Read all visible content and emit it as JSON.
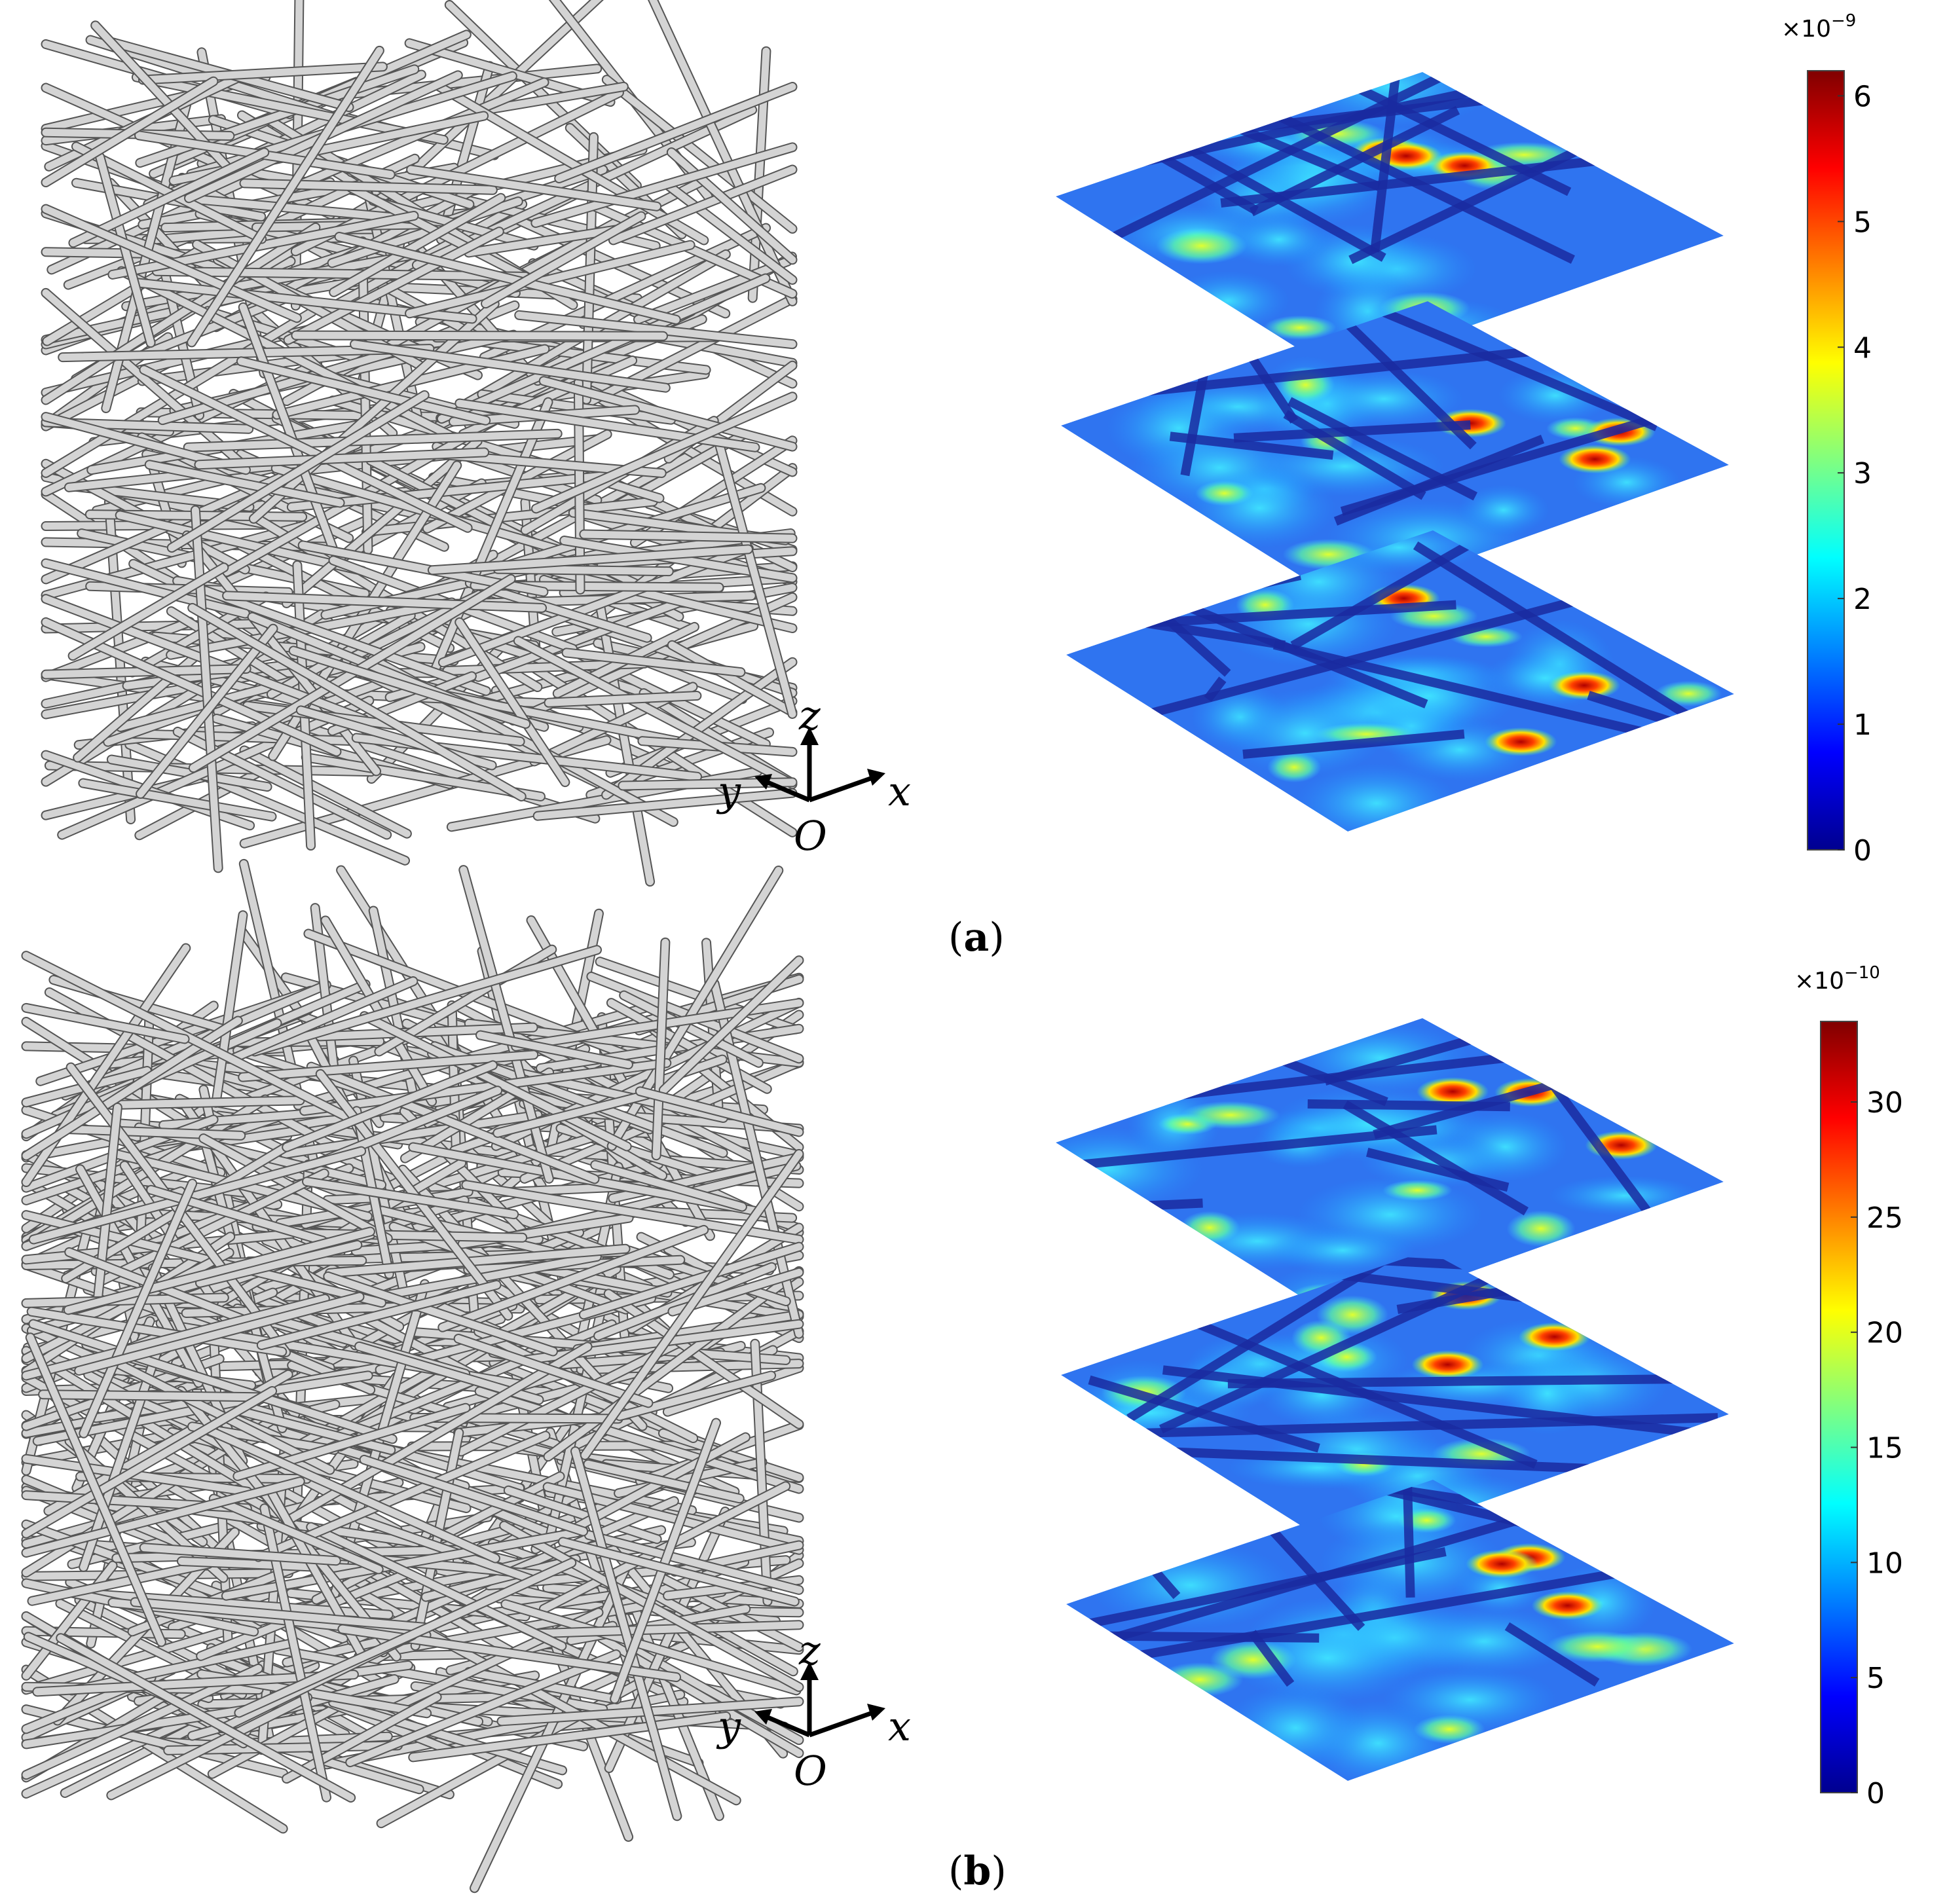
{
  "panels": [
    {
      "id": "a",
      "caption_open": "(",
      "caption_letter": "a",
      "caption_close": ")",
      "axes": {
        "z": "z",
        "y": "y",
        "x": "x",
        "origin": "O"
      },
      "colorbar": {
        "multiplier": "×10",
        "exponent": "−9",
        "ticks": [
          "0",
          "1",
          "2",
          "3",
          "4",
          "5",
          "6"
        ],
        "min": 0,
        "max": 6.2
      },
      "slices": 3
    },
    {
      "id": "b",
      "caption_open": "(",
      "caption_letter": "b",
      "caption_close": ")",
      "axes": {
        "z": "z",
        "y": "y",
        "x": "x",
        "origin": "O"
      },
      "colorbar": {
        "multiplier": "×10",
        "exponent": "−10",
        "ticks": [
          "0",
          "5",
          "10",
          "15",
          "20",
          "25",
          "30"
        ],
        "min": 0,
        "max": 33.5
      },
      "slices": 3
    }
  ],
  "colors": {
    "fiber": "#d4d4d4",
    "fiber_edge": "#555555",
    "jet": [
      "#00008f",
      "#0000ff",
      "#0080ff",
      "#00ffff",
      "#80ff80",
      "#ffff00",
      "#ff8000",
      "#ff0000",
      "#800000"
    ]
  }
}
